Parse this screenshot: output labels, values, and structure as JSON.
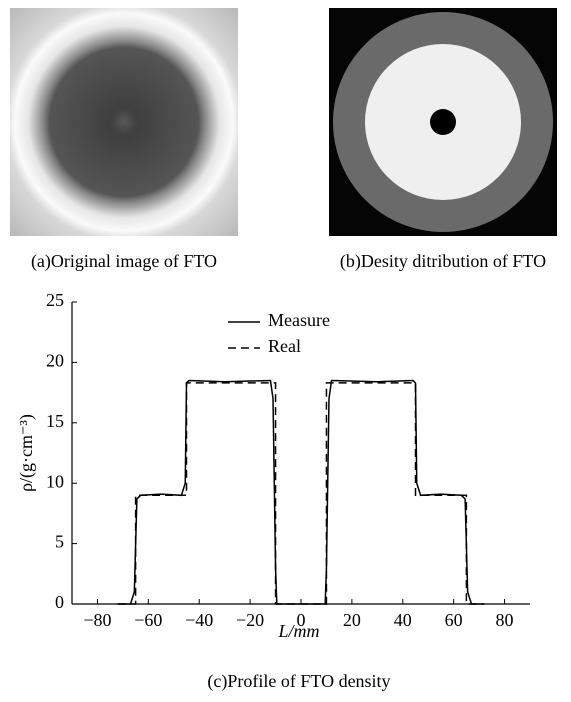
{
  "images": {
    "a": {
      "caption": "(a)Original image of FTO"
    },
    "b": {
      "caption": "(b)Desity ditribution of FTO"
    }
  },
  "chart_data": {
    "type": "line",
    "title": "(c)Profile of FTO density",
    "xlabel": "L/mm",
    "ylabel": "ρ/(g·cm⁻³)",
    "xlim": [
      -90,
      90
    ],
    "ylim": [
      0,
      25
    ],
    "xticks": [
      {
        "value": -80,
        "label": "−80"
      },
      {
        "value": -60,
        "label": "−60"
      },
      {
        "value": -40,
        "label": "−40"
      },
      {
        "value": -20,
        "label": "−20"
      },
      0,
      20,
      40,
      60,
      80
    ],
    "yticks": [
      0,
      5,
      10,
      15,
      20,
      25
    ],
    "legend": "upper center",
    "series": [
      {
        "name": "Measure",
        "color": "#000000",
        "dash": "none",
        "x": [
          -72,
          -67,
          -65.5,
          -64.5,
          -63,
          -55,
          -47,
          -45.5,
          -45,
          -44,
          -30,
          -12,
          -11,
          -10,
          -9.5,
          9.5,
          10,
          11,
          12,
          30,
          44,
          45,
          45.5,
          47,
          55,
          63,
          64.5,
          65.5,
          67,
          72
        ],
        "values": [
          0,
          0,
          1,
          8.7,
          9.0,
          9.1,
          9.0,
          10,
          18.3,
          18.5,
          18.4,
          18.5,
          17,
          3,
          0,
          0,
          3,
          17,
          18.5,
          18.4,
          18.5,
          18.3,
          10,
          9.0,
          9.1,
          9.0,
          8.7,
          1,
          0,
          0
        ]
      },
      {
        "name": "Real",
        "color": "#000000",
        "dash": "8,5",
        "x": [
          -72,
          -65,
          -65,
          -45,
          -45,
          -10,
          -10,
          10,
          10,
          45,
          45,
          65,
          65,
          72
        ],
        "values": [
          0,
          0,
          9,
          9,
          18.3,
          18.3,
          0,
          0,
          18.3,
          18.3,
          9,
          9,
          0,
          0
        ]
      }
    ]
  }
}
